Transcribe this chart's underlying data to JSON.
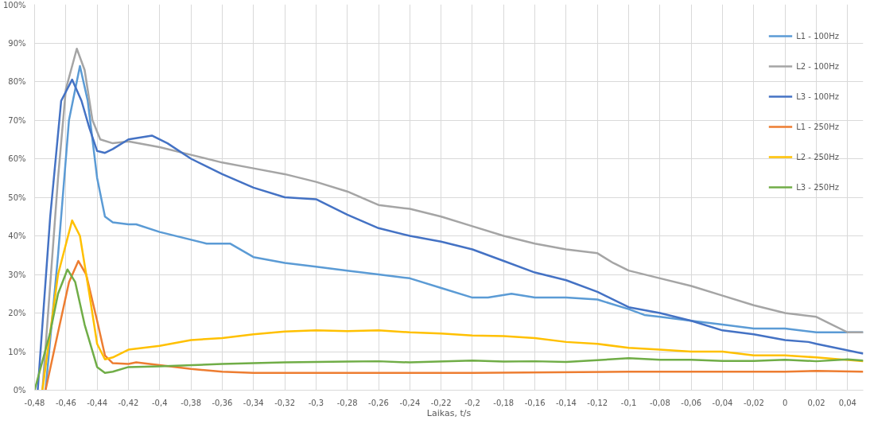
{
  "chart_data": {
    "type": "line",
    "xlabel": "Laikas, t/s",
    "xlim": [
      -0.48,
      0.05
    ],
    "xticks": [
      {
        "value": -0.48,
        "label": "-0,48"
      },
      {
        "value": -0.46,
        "label": "-0,46"
      },
      {
        "value": -0.44,
        "label": "-0,44"
      },
      {
        "value": -0.42,
        "label": "-0,42"
      },
      {
        "value": -0.4,
        "label": "-0,4"
      },
      {
        "value": -0.38,
        "label": "-0,38"
      },
      {
        "value": -0.36,
        "label": "-0,36"
      },
      {
        "value": -0.34,
        "label": "-0,34"
      },
      {
        "value": -0.32,
        "label": "-0,32"
      },
      {
        "value": -0.3,
        "label": "-0,3"
      },
      {
        "value": -0.28,
        "label": "-0,28"
      },
      {
        "value": -0.26,
        "label": "-0,26"
      },
      {
        "value": -0.24,
        "label": "-0,24"
      },
      {
        "value": -0.22,
        "label": "-0,22"
      },
      {
        "value": -0.2,
        "label": "-0,2"
      },
      {
        "value": -0.18,
        "label": "-0,18"
      },
      {
        "value": -0.16,
        "label": "-0,16"
      },
      {
        "value": -0.14,
        "label": "-0,14"
      },
      {
        "value": -0.12,
        "label": "-0,12"
      },
      {
        "value": -0.1,
        "label": "-0,1"
      },
      {
        "value": -0.08,
        "label": "-0,08"
      },
      {
        "value": -0.06,
        "label": "-0,06"
      },
      {
        "value": -0.04,
        "label": "-0,04"
      },
      {
        "value": -0.02,
        "label": "-0,02"
      },
      0,
      {
        "value": 0.02,
        "label": "0,02"
      },
      {
        "value": 0.04,
        "label": "0,04"
      }
    ],
    "ylim": [
      0,
      100
    ],
    "yticks": [
      {
        "value": 0,
        "label": "0%"
      },
      {
        "value": 10,
        "label": "10%"
      },
      {
        "value": 20,
        "label": "20%"
      },
      {
        "value": 30,
        "label": "30%"
      },
      {
        "value": 40,
        "label": "40%"
      },
      {
        "value": 50,
        "label": "50%"
      },
      {
        "value": 60,
        "label": "60%"
      },
      {
        "value": 70,
        "label": "70%"
      },
      {
        "value": 80,
        "label": "80%"
      },
      {
        "value": 90,
        "label": "90%"
      },
      {
        "value": 100,
        "label": "100%"
      }
    ],
    "grid": true,
    "legend": "top right",
    "line_style": "solid",
    "series": [
      {
        "name": "L1 - 100Hz",
        "color": "#5b9bd5",
        "x": [
          -0.473,
          -0.465,
          -0.458,
          -0.451,
          -0.446,
          -0.44,
          -0.435,
          -0.43,
          -0.42,
          -0.415,
          -0.4,
          -0.37,
          -0.355,
          -0.34,
          -0.32,
          -0.3,
          -0.28,
          -0.26,
          -0.24,
          -0.22,
          -0.2,
          -0.19,
          -0.175,
          -0.16,
          -0.14,
          -0.12,
          -0.1,
          -0.09,
          -0.08,
          -0.06,
          -0.04,
          -0.02,
          0,
          0.02,
          0.05
        ],
        "values": [
          0,
          35,
          70,
          84,
          75,
          55,
          45,
          43.5,
          43,
          43,
          41,
          38,
          38,
          34.5,
          33,
          32,
          31,
          30,
          29,
          26.5,
          24,
          24,
          25,
          24,
          24,
          23.5,
          21,
          19.5,
          19,
          18,
          17,
          16,
          16,
          15,
          15
        ]
      },
      {
        "name": "L2 - 100Hz",
        "color": "#a5a5a5",
        "x": [
          -0.475,
          -0.465,
          -0.46,
          -0.453,
          -0.448,
          -0.443,
          -0.438,
          -0.43,
          -0.42,
          -0.4,
          -0.38,
          -0.36,
          -0.34,
          -0.32,
          -0.3,
          -0.28,
          -0.26,
          -0.24,
          -0.22,
          -0.2,
          -0.18,
          -0.16,
          -0.14,
          -0.12,
          -0.11,
          -0.1,
          -0.08,
          -0.06,
          -0.04,
          -0.02,
          0,
          0.02,
          0.03,
          0.04,
          0.05
        ],
        "values": [
          0,
          55,
          78,
          88.5,
          83,
          70,
          65,
          64,
          64.5,
          63,
          61,
          59,
          57.5,
          56,
          54,
          51.5,
          48,
          47,
          45,
          42.5,
          40,
          38,
          36.5,
          35.5,
          33,
          31,
          29,
          27,
          24.5,
          22,
          20,
          19,
          17,
          15,
          15
        ]
      },
      {
        "name": "L3 - 100Hz",
        "color": "#4472c4",
        "x": [
          -0.478,
          -0.47,
          -0.463,
          -0.456,
          -0.45,
          -0.445,
          -0.44,
          -0.435,
          -0.43,
          -0.42,
          -0.405,
          -0.395,
          -0.38,
          -0.36,
          -0.34,
          -0.32,
          -0.3,
          -0.28,
          -0.26,
          -0.24,
          -0.22,
          -0.2,
          -0.18,
          -0.16,
          -0.14,
          -0.12,
          -0.1,
          -0.08,
          -0.06,
          -0.04,
          -0.02,
          0,
          0.015,
          0.02,
          0.05
        ],
        "values": [
          0,
          45,
          75,
          80.5,
          75,
          68,
          62,
          61.5,
          62.5,
          65,
          66,
          64,
          60,
          56,
          52.5,
          50,
          49.5,
          45.5,
          42,
          40,
          38.5,
          36.5,
          33.5,
          30.5,
          28.5,
          25.5,
          21.5,
          20,
          18,
          15.5,
          14.5,
          13,
          12.5,
          12,
          9.5
        ]
      },
      {
        "name": "L1 - 250Hz",
        "color": "#ed7d31",
        "x": [
          -0.473,
          -0.465,
          -0.458,
          -0.452,
          -0.447,
          -0.44,
          -0.435,
          -0.43,
          -0.42,
          -0.415,
          -0.4,
          -0.38,
          -0.36,
          -0.34,
          -0.3,
          -0.2,
          -0.1,
          0,
          0.02,
          0.05
        ],
        "values": [
          0,
          15,
          28,
          33.5,
          30,
          18,
          9,
          7,
          6.8,
          7.2,
          6.5,
          5.5,
          4.8,
          4.5,
          4.5,
          4.5,
          4.8,
          4.8,
          5,
          4.8
        ]
      },
      {
        "name": "L2 - 250Hz",
        "color": "#ffc000",
        "x": [
          -0.475,
          -0.465,
          -0.456,
          -0.451,
          -0.445,
          -0.44,
          -0.435,
          -0.43,
          -0.42,
          -0.4,
          -0.38,
          -0.36,
          -0.34,
          -0.32,
          -0.3,
          -0.28,
          -0.26,
          -0.24,
          -0.22,
          -0.2,
          -0.18,
          -0.16,
          -0.14,
          -0.12,
          -0.1,
          -0.08,
          -0.06,
          -0.04,
          -0.02,
          0,
          0.02,
          0.05
        ],
        "values": [
          0,
          30,
          44,
          40,
          25,
          12,
          8,
          8.5,
          10.5,
          11.5,
          13,
          13.5,
          14.5,
          15.2,
          15.5,
          15.3,
          15.5,
          15,
          14.7,
          14.2,
          14,
          13.5,
          12.5,
          12,
          11,
          10.5,
          10,
          10,
          9,
          9,
          8.5,
          7.5
        ]
      },
      {
        "name": "L3 - 250Hz",
        "color": "#70ad47",
        "x": [
          -0.48,
          -0.47,
          -0.465,
          -0.459,
          -0.454,
          -0.448,
          -0.44,
          -0.435,
          -0.43,
          -0.42,
          -0.4,
          -0.36,
          -0.32,
          -0.28,
          -0.26,
          -0.24,
          -0.2,
          -0.18,
          -0.16,
          -0.14,
          -0.12,
          -0.1,
          -0.08,
          -0.06,
          -0.04,
          -0.02,
          0,
          0.02,
          0.04,
          0.05
        ],
        "values": [
          0,
          15,
          25,
          31.3,
          28,
          17,
          6,
          4.5,
          4.8,
          6,
          6.2,
          6.8,
          7.2,
          7.4,
          7.5,
          7.2,
          7.7,
          7.4,
          7.5,
          7.3,
          7.8,
          8.3,
          7.9,
          7.9,
          7.6,
          7.6,
          7.9,
          7.5,
          8,
          7.7
        ]
      }
    ]
  }
}
